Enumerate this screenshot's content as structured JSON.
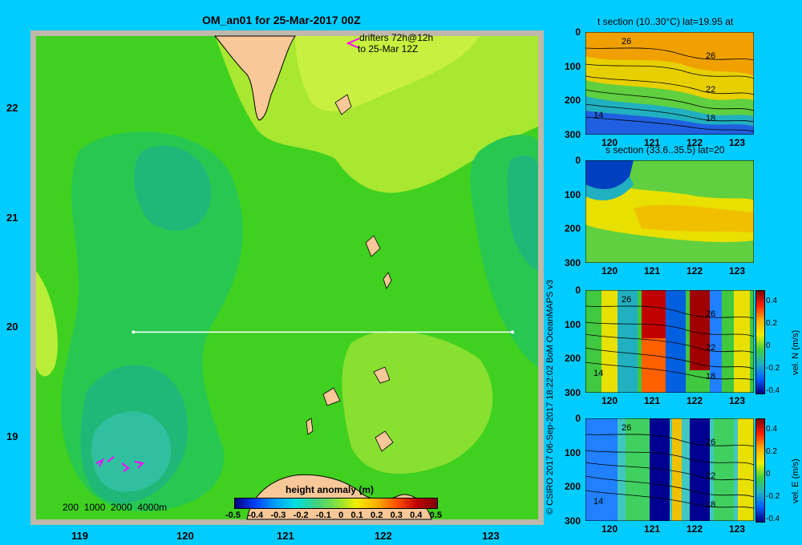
{
  "map": {
    "title": "OM_an01 for 25-Mar-2017 00Z",
    "drifter_note_line1": "drifters 72h@12h",
    "drifter_note_line2": "to 25-Mar 12Z",
    "lat_ticks": [
      "22",
      "21",
      "20",
      "19"
    ],
    "lon_ticks": [
      "119",
      "120",
      "121",
      "122",
      "123"
    ],
    "depth_legend": "200  1000  2000  4000m",
    "colorbar_title": "height anomaly (m)",
    "colorbar_ticks": [
      "-0.5",
      "-0.4",
      "-0.3",
      "-0.2",
      "-0.1",
      "0",
      "0.1",
      "0.2",
      "0.3",
      "0.4",
      "0.5"
    ],
    "section_line_lat": 20,
    "section_line_lon": [
      119.5,
      123.2
    ]
  },
  "credit": "© CSIRO 2017   06-Sep-2017 18:22:02 BoM OceanMAPS v3",
  "panels": [
    {
      "title": "t section (10..30°C) lat=19.95 at",
      "depth_ticks": [
        "0",
        "100",
        "200",
        "300"
      ],
      "lon_ticks": [
        "120",
        "121",
        "122",
        "123"
      ],
      "contour_labels": [
        "26",
        "26",
        "22",
        "18",
        "14"
      ],
      "colorbar_label": "",
      "colorbar_ticks": []
    },
    {
      "title": "s section (33.6..35.5) lat=20",
      "depth_ticks": [
        "0",
        "100",
        "200",
        "300"
      ],
      "lon_ticks": [
        "120",
        "121",
        "122",
        "123"
      ],
      "contour_labels": [],
      "colorbar_label": "",
      "colorbar_ticks": []
    },
    {
      "title": "",
      "depth_ticks": [
        "0",
        "100",
        "200",
        "300"
      ],
      "lon_ticks": [
        "120",
        "121",
        "122",
        "123"
      ],
      "contour_labels": [
        "26",
        "26",
        "22",
        "18",
        "14"
      ],
      "colorbar_label": "vel. N (m/s)",
      "colorbar_ticks": [
        "0.4",
        "0.2",
        "0",
        "-0.2",
        "-0.4"
      ]
    },
    {
      "title": "",
      "depth_ticks": [
        "0",
        "100",
        "200",
        "300"
      ],
      "lon_ticks": [
        "120",
        "121",
        "122",
        "123"
      ],
      "contour_labels": [
        "26",
        "26",
        "22",
        "18",
        "14"
      ],
      "colorbar_label": "vel. E (m/s)",
      "colorbar_ticks": [
        "0.4",
        "0.2",
        "0",
        "-0.2",
        "-0.4"
      ]
    }
  ],
  "colors": {
    "background": "#00ccff",
    "map_border": "#c0b8a8",
    "land": "#f8c898",
    "anomaly_low": "#20c0a0",
    "anomaly_mid": "#40d020",
    "anomaly_high": "#c8f040",
    "drifter": "#ff00ff"
  }
}
